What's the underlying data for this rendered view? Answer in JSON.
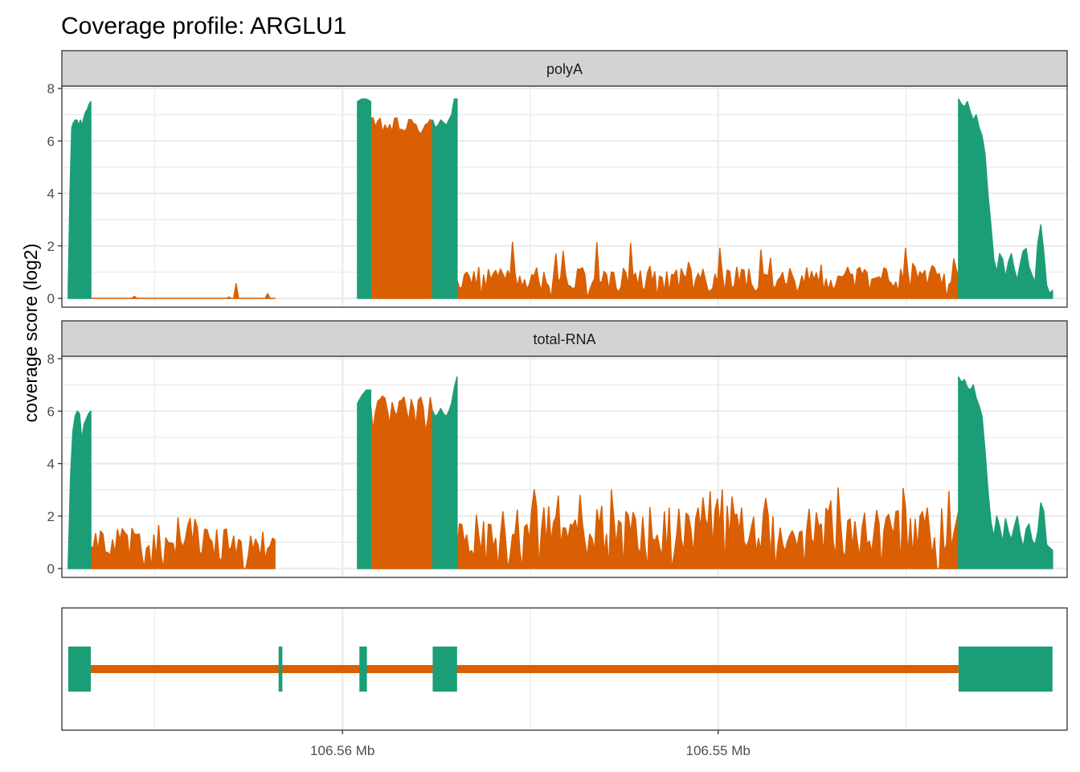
{
  "chart_data": {
    "type": "area",
    "title": "Coverage profile: ARGLU1",
    "ylabel": "coverage score (log2)",
    "xlabel": "",
    "ylim": [
      0,
      8.2
    ],
    "yticks": [
      0,
      2,
      4,
      6,
      8
    ],
    "x_axis": {
      "unit": "Mb",
      "reversed": true,
      "range": [
        106.56747,
        106.54071
      ],
      "ticks": [
        {
          "value": 106.56,
          "label": "106.56 Mb"
        },
        {
          "value": 106.55,
          "label": "106.55 Mb"
        }
      ],
      "minor_gridlines": [
        106.565,
        106.555,
        106.545
      ]
    },
    "grid": true,
    "colors": {
      "exon": "#1B9E77",
      "intron": "#D95F02",
      "strip_bg": "#D3D3D3",
      "grid": "#EBEBEB"
    },
    "gene_model": {
      "exons_mb": [
        [
          106.5673,
          106.5667
        ],
        [
          106.5617,
          106.5616
        ],
        [
          106.55955,
          106.55935
        ],
        [
          106.5576,
          106.55695
        ],
        [
          106.5436,
          106.5411
        ]
      ],
      "introns_mb": [
        [
          106.5667,
          106.5436
        ]
      ]
    },
    "series": [
      {
        "name": "polyA",
        "exon_profile": [
          {
            "from": 106.5673,
            "to": 106.5667,
            "values": [
              0.4,
              4.0,
              6.5,
              6.7,
              6.8,
              6.8,
              6.6,
              6.8,
              6.6,
              6.9,
              7.1,
              7.2,
              7.4,
              7.5
            ]
          },
          {
            "from": 106.5596,
            "to": 106.55925,
            "values": [
              7.5,
              7.6,
              7.6,
              7.5
            ]
          },
          {
            "from": 106.5576,
            "to": 106.55695,
            "values": [
              6.8,
              6.5,
              6.6,
              6.8,
              6.7,
              6.6,
              6.8,
              7.0,
              7.6,
              7.6
            ]
          },
          {
            "from": 106.5436,
            "to": 106.5411,
            "values": [
              7.6,
              7.4,
              7.3,
              7.5,
              7.1,
              6.8,
              7.0,
              6.5,
              6.2,
              5.5,
              4.0,
              2.8,
              1.5,
              1.0,
              1.7,
              1.5,
              0.8,
              1.4,
              1.7,
              1.1,
              0.7,
              1.3,
              1.8,
              1.9,
              1.2,
              0.9,
              0.6,
              2.1,
              2.8,
              1.8,
              0.5,
              0.2,
              0.3
            ]
          }
        ],
        "intron_profile": [
          {
            "from": 106.5667,
            "to": 106.5618,
            "level": 0.05,
            "max": 0.6
          },
          {
            "from": 106.55925,
            "to": 106.5576,
            "level": 6.4,
            "max": 6.9
          },
          {
            "from": 106.55695,
            "to": 106.5436,
            "level": 0.7,
            "max": 2.3
          }
        ]
      },
      {
        "name": "total-RNA",
        "exon_profile": [
          {
            "from": 106.5673,
            "to": 106.5667,
            "values": [
              0.2,
              3.5,
              5.2,
              5.8,
              6.0,
              5.9,
              4.9,
              5.5,
              5.7,
              5.9,
              6.0
            ]
          },
          {
            "from": 106.5596,
            "to": 106.55925,
            "values": [
              6.3,
              6.6,
              6.8,
              6.8
            ]
          },
          {
            "from": 106.5576,
            "to": 106.55695,
            "values": [
              6.0,
              5.8,
              5.9,
              6.1,
              5.9,
              5.8,
              6.0,
              6.3,
              6.9,
              7.3
            ]
          },
          {
            "from": 106.5436,
            "to": 106.5411,
            "values": [
              7.3,
              7.1,
              7.2,
              6.9,
              6.8,
              7.0,
              6.5,
              6.2,
              5.8,
              4.5,
              3.0,
              1.8,
              1.2,
              2.0,
              1.6,
              1.0,
              1.9,
              1.4,
              1.1,
              1.6,
              2.0,
              1.3,
              0.8,
              1.5,
              1.7,
              1.1,
              0.9,
              1.4,
              2.5,
              2.2,
              0.9,
              0.8,
              0.7
            ]
          }
        ],
        "intron_profile": [
          {
            "from": 106.5667,
            "to": 106.5618,
            "level": 0.9,
            "max": 2.0
          },
          {
            "from": 106.55925,
            "to": 106.5576,
            "level": 5.6,
            "max": 6.6
          },
          {
            "from": 106.55695,
            "to": 106.5436,
            "level": 1.4,
            "max": 3.1
          }
        ]
      }
    ]
  }
}
